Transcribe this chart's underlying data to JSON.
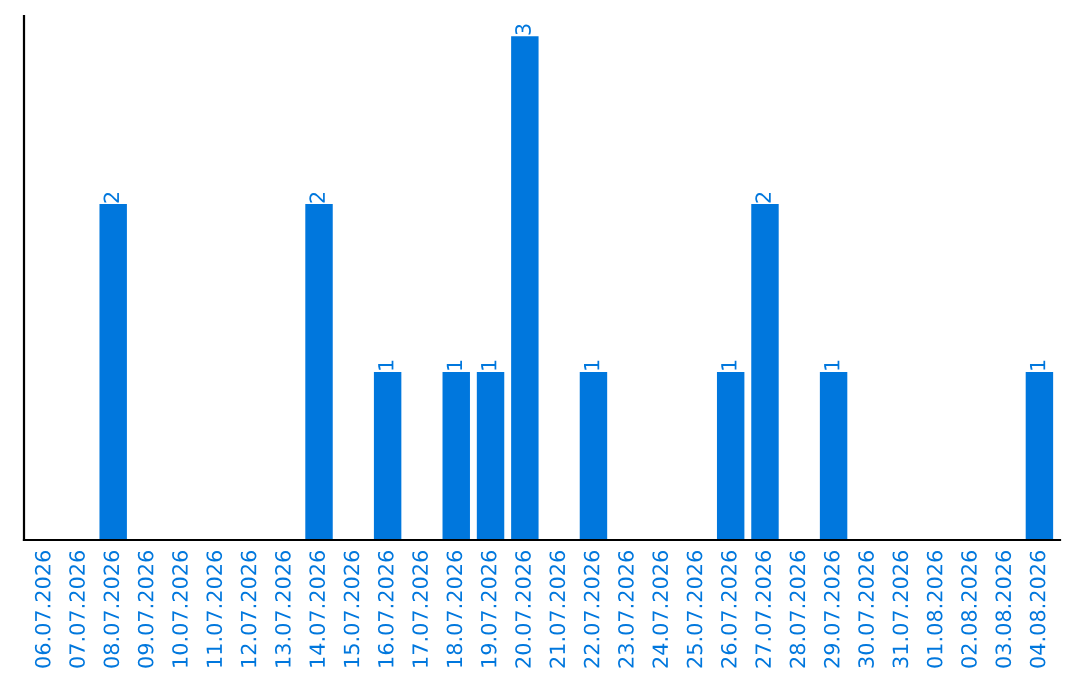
{
  "chart_data": {
    "type": "bar",
    "categories": [
      "06.07.2026",
      "07.07.2026",
      "08.07.2026",
      "09.07.2026",
      "10.07.2026",
      "11.07.2026",
      "12.07.2026",
      "13.07.2026",
      "14.07.2026",
      "15.07.2026",
      "16.07.2026",
      "17.07.2026",
      "18.07.2026",
      "19.07.2026",
      "20.07.2026",
      "21.07.2026",
      "22.07.2026",
      "23.07.2026",
      "24.07.2026",
      "25.07.2026",
      "26.07.2026",
      "27.07.2026",
      "28.07.2026",
      "29.07.2026",
      "30.07.2026",
      "31.07.2026",
      "01.08.2026",
      "02.08.2026",
      "03.08.2026",
      "04.08.2026"
    ],
    "values": [
      0,
      0,
      2,
      0,
      0,
      0,
      0,
      0,
      2,
      0,
      1,
      0,
      1,
      1,
      3,
      0,
      1,
      0,
      0,
      0,
      1,
      2,
      0,
      1,
      0,
      0,
      0,
      0,
      0,
      1
    ],
    "value_labels": [
      null,
      null,
      "2",
      null,
      null,
      null,
      null,
      null,
      "2",
      null,
      "1",
      null,
      "1",
      "1",
      "3",
      null,
      "1",
      null,
      null,
      null,
      "1",
      "2",
      null,
      "1",
      null,
      null,
      null,
      null,
      null,
      "1"
    ],
    "color": "#0077dd",
    "tick_labels": "x",
    "grid": false,
    "legend": false
  }
}
